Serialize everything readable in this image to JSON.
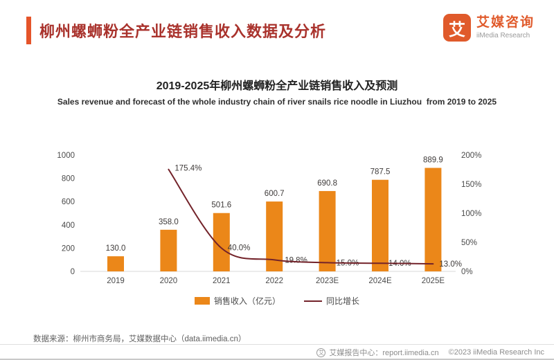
{
  "header": {
    "title": "柳州螺蛳粉全产业链销售收入数据及分析",
    "logo": {
      "mark": "艾",
      "name_cn": "艾媒咨询",
      "name_en": "iiMedia Research"
    }
  },
  "chart_data": {
    "type": "bar+line",
    "title": "2019-2025年柳州螺蛳粉全产业链销售收入及预测",
    "subtitle": "Sales revenue and forecast of the whole industry chain of river snails rice noodle in Liuzhou  from 2019 to 2025",
    "categories": [
      "2019",
      "2020",
      "2021",
      "2022",
      "2023E",
      "2024E",
      "2025E"
    ],
    "series": [
      {
        "name": "销售收入（亿元）",
        "type": "bar",
        "axis": "left",
        "color": "#eb8719",
        "values": [
          130.0,
          358.0,
          501.6,
          600.7,
          690.8,
          787.5,
          889.9
        ]
      },
      {
        "name": "同比增长",
        "type": "line",
        "axis": "right",
        "color": "#73232a",
        "unit": "%",
        "values": [
          null,
          175.4,
          40.0,
          19.8,
          15.0,
          14.0,
          13.0
        ]
      }
    ],
    "left_axis": {
      "min": 0,
      "max": 1000,
      "ticks": [
        0,
        200,
        400,
        600,
        800,
        1000
      ]
    },
    "right_axis": {
      "min": 0,
      "max": 200,
      "tick_labels": [
        "0%",
        "50%",
        "100%",
        "150%",
        "200%"
      ]
    },
    "grid": false,
    "legend_position": "bottom"
  },
  "source": "数据来源：柳州市商务局，艾媒数据中心（data.iimedia.cn）",
  "footer": {
    "center_label": "艾媒报告中心：report.iimedia.cn",
    "copyright": "©2023  iiMedia Research Inc"
  },
  "colors": {
    "accent_orange": "#e5542a",
    "title_red": "#a9322c",
    "bar_orange": "#eb8719",
    "line_maroon": "#73232a",
    "text_dark": "#3e3a39",
    "text_axis": "#4a4a4a"
  }
}
